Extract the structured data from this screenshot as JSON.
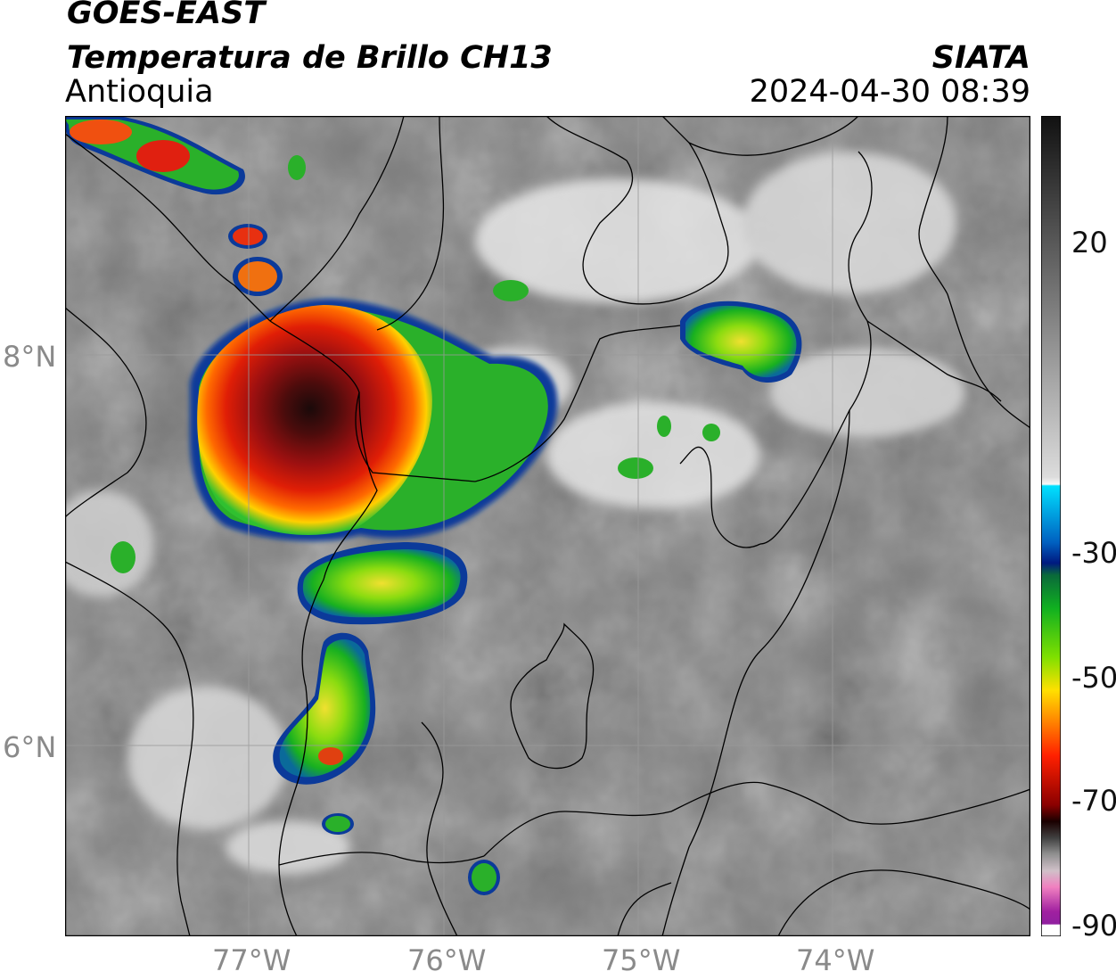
{
  "header": {
    "satellite": "GOES-EAST",
    "product": "Temperatura de Brillo CH13",
    "region": "Antioquia",
    "organization": "SIATA",
    "datetime": "2024-04-30 08:39"
  },
  "map": {
    "lat_labels": [
      "8°N",
      "6°N"
    ],
    "lon_labels": [
      "77°W",
      "76°W",
      "75°W",
      "74°W"
    ],
    "colorbar_labels": [
      "20",
      "-30",
      "-50",
      "-70",
      "-90"
    ]
  },
  "colors": {
    "background_gray": "#808080",
    "grid": "#9a9a9a",
    "border": "#000000",
    "label_gray": "#8a8a8a"
  },
  "legend_icon": "colorbar-temperature"
}
